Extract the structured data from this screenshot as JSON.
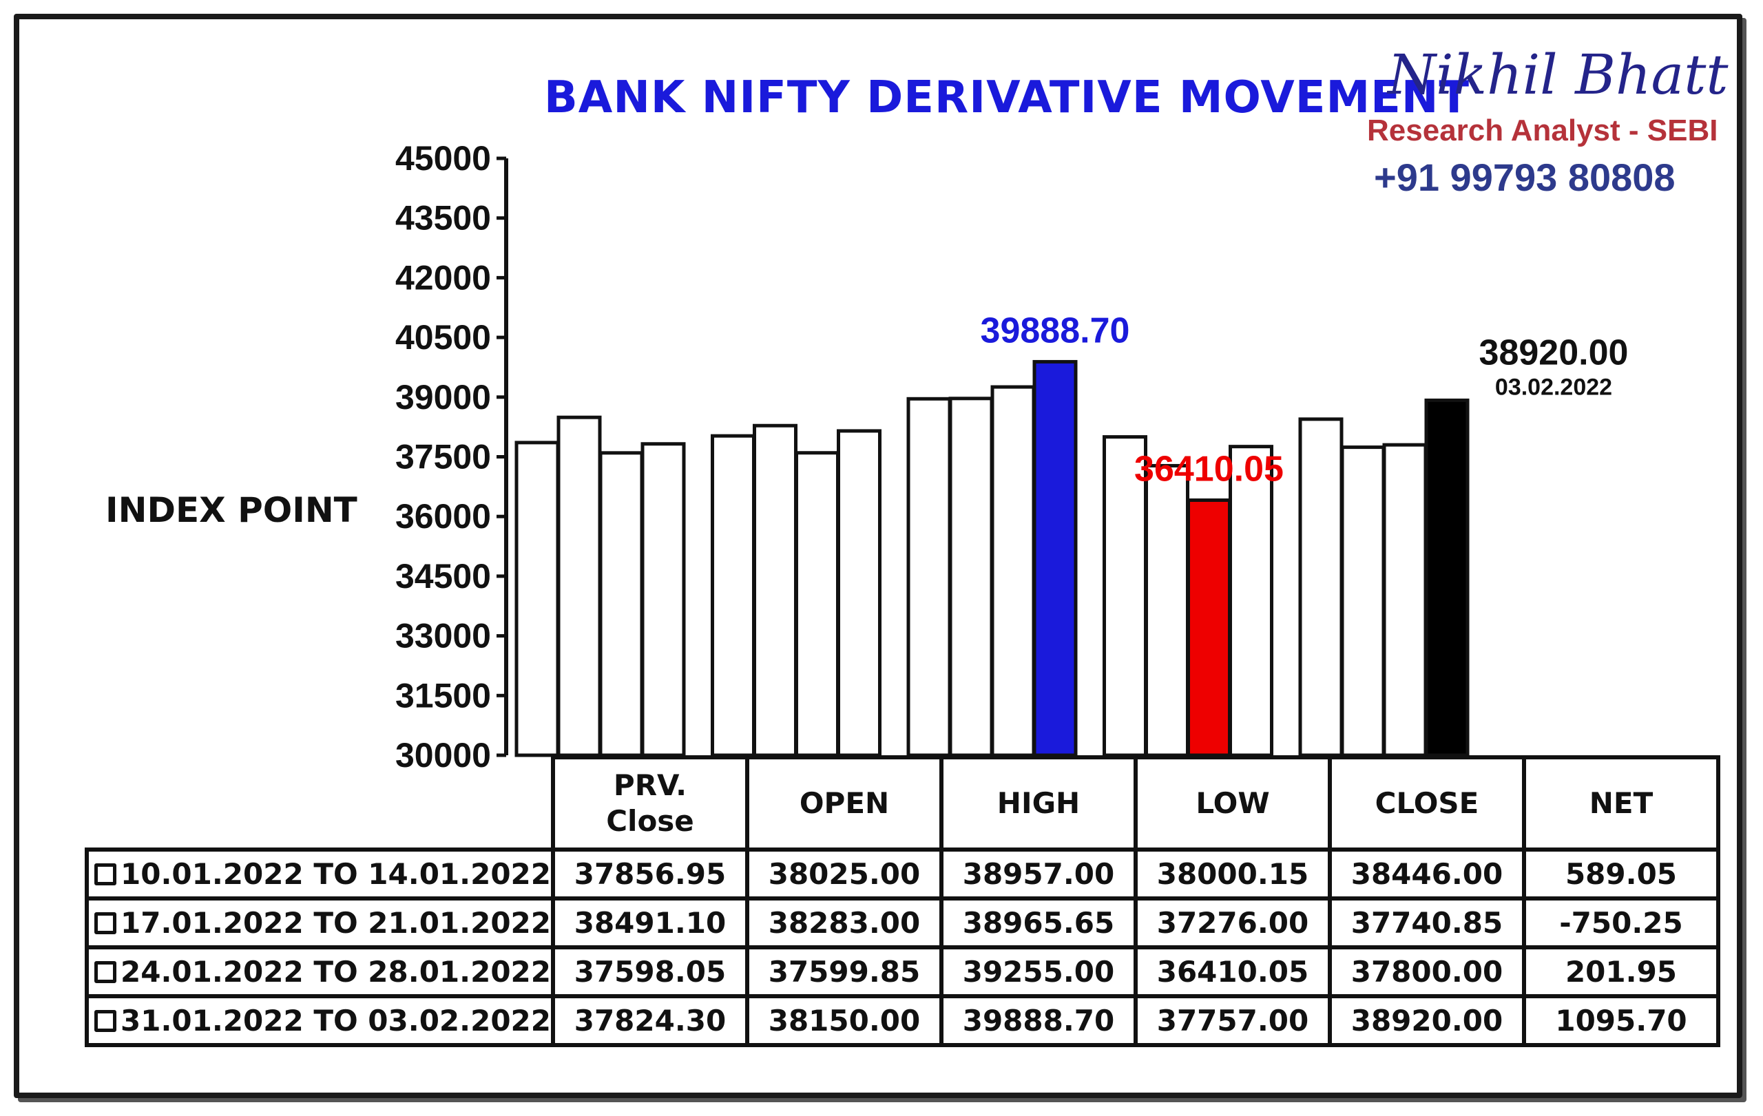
{
  "title": "BANK NIFTY DERIVATIVE MOVEMENT",
  "brand": {
    "name": "Nikhil Bhatt",
    "role": "Research Analyst - SEBI",
    "phone": "+91 99793 80808"
  },
  "ylabel": "INDEX POINT",
  "colors": {
    "title": "#1a1adb",
    "high_bar": "#1a1adb",
    "low_bar": "#ee0000",
    "close_bar": "#000000",
    "normal_bar": "#ffffff"
  },
  "table": {
    "headers": [
      "PRV.\nClose",
      "OPEN",
      "HIGH",
      "LOW",
      "CLOSE",
      "NET"
    ],
    "rows": [
      {
        "label": "10.01.2022 TO 14.01.2022",
        "values": [
          "37856.95",
          "38025.00",
          "38957.00",
          "38000.15",
          "38446.00",
          "589.05"
        ]
      },
      {
        "label": "17.01.2022 TO 21.01.2022",
        "values": [
          "38491.10",
          "38283.00",
          "38965.65",
          "37276.00",
          "37740.85",
          "-750.25"
        ]
      },
      {
        "label": "24.01.2022 TO 28.01.2022",
        "values": [
          "37598.05",
          "37599.85",
          "39255.00",
          "36410.05",
          "37800.00",
          "201.95"
        ]
      },
      {
        "label": "31.01.2022 TO 03.02.2022",
        "values": [
          "37824.30",
          "38150.00",
          "39888.70",
          "37757.00",
          "38920.00",
          "1095.70"
        ]
      }
    ]
  },
  "chart_data": {
    "type": "bar",
    "title": "BANK NIFTY DERIVATIVE MOVEMENT",
    "ylabel": "INDEX POINT",
    "ylim": [
      30000,
      45000
    ],
    "yticks": [
      45000,
      43500,
      42000,
      40500,
      39000,
      37500,
      36000,
      34500,
      33000,
      31500,
      30000
    ],
    "categories": [
      "PRV. Close",
      "OPEN",
      "HIGH",
      "LOW",
      "CLOSE"
    ],
    "series": [
      {
        "values": [
          37856.95,
          38025.0,
          38957.0,
          38000.15,
          38446.0
        ]
      },
      {
        "values": [
          38491.1,
          38283.0,
          38965.65,
          37276.0,
          37740.85
        ]
      },
      {
        "values": [
          37598.05,
          37599.85,
          39255.0,
          36410.05,
          37800.0
        ]
      },
      {
        "values": [
          37824.3,
          38150.0,
          39888.7,
          37757.0,
          38920.0
        ]
      }
    ],
    "annotations": [
      {
        "text": "39888.70",
        "category": "HIGH",
        "series": 3,
        "color": "#1a1adb"
      },
      {
        "text": "36410.05",
        "category": "LOW",
        "series": 2,
        "color": "#ee0000"
      },
      {
        "text": "38920.00",
        "category": "CLOSE",
        "series": 3,
        "color": "#111111"
      },
      {
        "text": "03.02.2022",
        "category": "CLOSE",
        "series": 3,
        "color": "#111111"
      }
    ],
    "highlight": [
      {
        "category": "HIGH",
        "series": 3,
        "color": "#1a1adb"
      },
      {
        "category": "LOW",
        "series": 2,
        "color": "#ee0000"
      },
      {
        "category": "CLOSE",
        "series": 3,
        "color": "#000000"
      }
    ],
    "grid": false
  }
}
